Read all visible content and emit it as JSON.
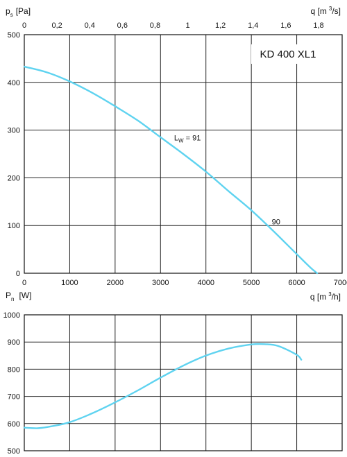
{
  "chart_data": [
    {
      "type": "line",
      "model": "KD 400 XL1",
      "y_title": "p",
      "y_title_sub": "s",
      "y_unit": "[Pa]",
      "x_top_title": "q [m",
      "x_top_sup": "3",
      "x_top_unit": "/s]",
      "x_bottom_title": "q [m",
      "x_bottom_sup": "3",
      "x_bottom_unit": "/h]",
      "xlim": [
        0,
        7000
      ],
      "ylim": [
        0,
        500
      ],
      "x_ticks": [
        "0",
        "1000",
        "2000",
        "3000",
        "4000",
        "5000",
        "6000",
        "7000"
      ],
      "x_top_ticks": [
        "0",
        "0,2",
        "0,4",
        "0,6",
        "0,8",
        "1",
        "1,2",
        "1,4",
        "1,6",
        "1,8"
      ],
      "y_ticks": [
        "0",
        "100",
        "200",
        "300",
        "400",
        "500"
      ],
      "x_top_lim": [
        0,
        1.9444
      ],
      "annotations": [
        {
          "text": "L",
          "sub": "W",
          "tail": " = 91",
          "x": 3300,
          "y": 284
        },
        {
          "text": "90",
          "x": 5450,
          "y": 108
        }
      ],
      "series": [
        {
          "x": [
            0,
            500,
            1000,
            1500,
            2000,
            2500,
            3000,
            3500,
            4000,
            4500,
            5000,
            5500,
            6000,
            6300,
            6450
          ],
          "y": [
            433,
            421,
            402,
            378,
            350,
            320,
            285,
            250,
            213,
            172,
            132,
            87,
            40,
            12,
            0
          ]
        }
      ]
    },
    {
      "type": "line",
      "y_title": "P",
      "y_title_sub": "n",
      "y_unit": "[W]",
      "xlim": [
        0,
        7000
      ],
      "ylim": [
        500,
        1000
      ],
      "y_ticks": [
        "500",
        "600",
        "700",
        "800",
        "900",
        "1000"
      ],
      "series": [
        {
          "x": [
            0,
            300,
            600,
            1000,
            1500,
            2000,
            2500,
            3000,
            3500,
            4000,
            4500,
            5000,
            5300,
            5600,
            6000,
            6100
          ],
          "y": [
            585,
            583,
            590,
            605,
            638,
            678,
            722,
            769,
            813,
            850,
            876,
            891,
            892,
            885,
            853,
            835
          ]
        }
      ]
    }
  ]
}
